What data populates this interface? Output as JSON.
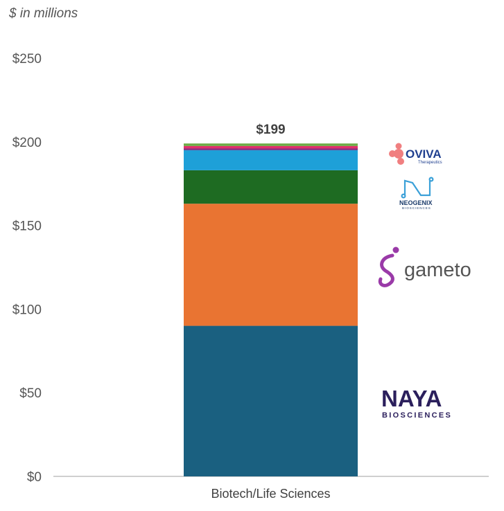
{
  "chart_data": {
    "type": "bar",
    "stacked": true,
    "unit_label": "$ in millions",
    "categories": [
      "Biotech/Life Sciences"
    ],
    "total_label": "$199",
    "ylim": [
      0,
      250
    ],
    "yticks": [
      "$0",
      "$50",
      "$100",
      "$150",
      "$200",
      "$250"
    ],
    "ytick_values": [
      0,
      50,
      100,
      150,
      200,
      250
    ],
    "grid": false,
    "series": [
      {
        "values": [
          90
        ],
        "color": "#1a6080"
      },
      {
        "values": [
          73
        ],
        "color": "#e97432"
      },
      {
        "values": [
          20
        ],
        "color": "#1e6b22"
      },
      {
        "values": [
          12
        ],
        "color": "#1ea0d8"
      },
      {
        "values": [
          1
        ],
        "color": "#7e2d7e"
      },
      {
        "values": [
          1.5
        ],
        "color": "#e0306b"
      },
      {
        "values": [
          1.5
        ],
        "color": "#6cac45"
      }
    ],
    "logos": [
      {
        "name": "oviva-logo",
        "text": "OVIVA",
        "subtext": "Therapeutics",
        "color": "#1f3f8f",
        "accent": "#f07f80"
      },
      {
        "name": "neogenix-logo",
        "text": "NEOGENIX",
        "subtext": "BIOSCIENCES",
        "color": "#1a3a6a",
        "accent": "#3aa0d8"
      },
      {
        "name": "gameto-logo",
        "text": "gameto",
        "color": "#555555",
        "accent": "#9a3aa8"
      },
      {
        "name": "naya-logo",
        "text": "NAYA",
        "subtext": "BIOSCIENCES",
        "color": "#2b1f5c",
        "accent": "#2ec4a8"
      }
    ]
  }
}
